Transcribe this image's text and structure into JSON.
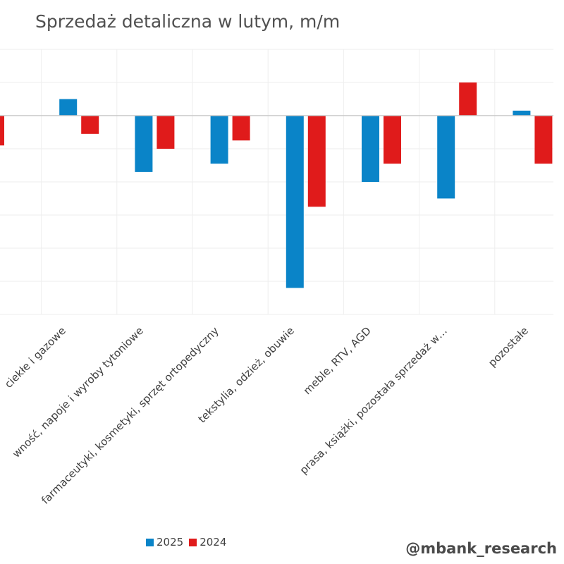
{
  "colors": {
    "series_2025": "#0a84c8",
    "series_2024": "#e01b1b",
    "grid": "#eeeeee",
    "zero_line": "#c8c8c8",
    "text": "#404040"
  },
  "watermark": "@mbank_research",
  "chart_data": {
    "type": "bar",
    "title": "Sprzedaż detaliczna w lutym, m/m",
    "xlabel": "",
    "ylabel": "",
    "ylim": [
      -6,
      2
    ],
    "grid": true,
    "legend_position": "bottom",
    "categories": [
      "paliwa stałe, ciekłe i gazowe",
      "żywność, napoje i wyroby tytoniowe",
      "farmaceutyki, kosmetyki, sprzęt ortopedyczny",
      "tekstylia, odzież, obuwie",
      "meble, RTV, AGD",
      "prasa, książki, pozostała sprzedaż w…",
      "pozostałe"
    ],
    "category_labels_visible": [
      "ciekłe i gazowe",
      "wność, napoje i wyroby tytoniowe",
      "farmaceutyki, kosmetyki, sprzęt ortopedyczny",
      "tekstylia, odzież, obuwie",
      "meble, RTV, AGD",
      "prasa, książki, pozostała sprzedaż w…",
      "pozostałe"
    ],
    "series": [
      {
        "name": "2025",
        "values": [
          0.5,
          -1.7,
          -1.45,
          -5.2,
          -2.0,
          -2.5,
          0.15
        ]
      },
      {
        "name": "2024",
        "values": [
          -0.55,
          -1.0,
          -0.75,
          -2.75,
          -1.45,
          1.0,
          -1.45
        ]
      }
    ],
    "partial_first_category_2024_value": -0.9
  }
}
